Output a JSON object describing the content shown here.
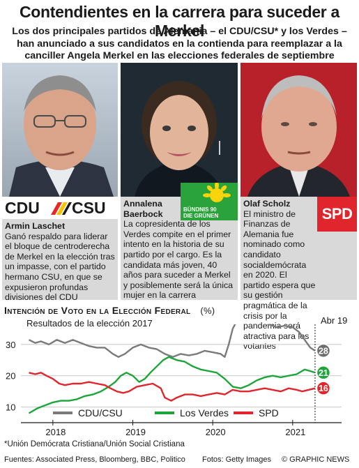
{
  "title": "Contendientes en la carrera para suceder a Merkel",
  "subtitle": "Los dos principales partidos de Alemania – el CDU/CSU* y los Verdes – han anunciado a sus candidatos en la contienda para reemplazar a la canciller Angela Merkel en las elecciones federales de septiembre",
  "candidates": [
    {
      "name": "Armin Laschet",
      "party_logo": "CDU / CSU",
      "description": "Ganó respaldo para liderar el bloque de centroderecha de Merkel en la elección tras un impasse, con el partido hermano CSU, en que se expusieron profundas divisiones del CDU"
    },
    {
      "name": "Annalena Baerbock",
      "party_logo": "BÜNDNIS 90 DIE GRÜNEN",
      "description": "La copresidenta de los Verdes compite en el primer intento en la historia de su partido por el cargo. Es la candidata más joven, 40 años para suceder a Merkel y posiblemente será la única mujer en la carrera"
    },
    {
      "name": "Olaf Scholz",
      "party_logo": "SPD",
      "description": "El ministro de Finanzas de Alemania fue nominado como candidato socialdemócrata en 2020. El partido espera que su gestión pragmática de la crisis por la pandemia será atractiva para los votantes"
    }
  ],
  "chart_heading": "Intención de Voto en la Elección Federal",
  "chart_unit": "(%)",
  "chart_subtitle": "Resultados de la elección 2017",
  "chart_note": "Abr 19",
  "footnote": "*Unión Demócrata Cristiana/Unión Social Cristiana",
  "sources": "Fuentes: Associated Press, Bloomberg, BBC, Politico",
  "photos": "Fotos: Getty Images",
  "brand": "© GRAPHIC NEWS",
  "colors": {
    "cdu": "#7a7a7a",
    "greens": "#1ea53a",
    "spd": "#e0262c",
    "cdu_badge": "#6d6d6d",
    "desc_bg": "#d9d9d9"
  },
  "chart_data": {
    "type": "line",
    "ylim": [
      5,
      36
    ],
    "yticks": [
      10,
      20,
      30
    ],
    "xlim": [
      2017.6,
      2021.42
    ],
    "xticks": [
      {
        "label": "2018",
        "value": 2018
      },
      {
        "label": "2019",
        "value": 2019
      },
      {
        "label": "2020",
        "value": 2020
      },
      {
        "label": "2021",
        "value": 2021
      }
    ],
    "series": [
      {
        "name": "CDU/CSU",
        "key": "cdu",
        "end_label": "28",
        "points": [
          [
            2017.7,
            31.5
          ],
          [
            2017.78,
            30.5
          ],
          [
            2017.85,
            31
          ],
          [
            2017.95,
            30
          ],
          [
            2018.05,
            31.5
          ],
          [
            2018.15,
            30.5
          ],
          [
            2018.25,
            31.5
          ],
          [
            2018.35,
            30.5
          ],
          [
            2018.45,
            29.5
          ],
          [
            2018.55,
            29
          ],
          [
            2018.65,
            29
          ],
          [
            2018.75,
            27
          ],
          [
            2018.82,
            26
          ],
          [
            2018.9,
            27
          ],
          [
            2019.0,
            29
          ],
          [
            2019.1,
            30
          ],
          [
            2019.2,
            29
          ],
          [
            2019.3,
            28.5
          ],
          [
            2019.4,
            27
          ],
          [
            2019.5,
            26
          ],
          [
            2019.6,
            27
          ],
          [
            2019.7,
            26.5
          ],
          [
            2019.8,
            27
          ],
          [
            2019.9,
            28
          ],
          [
            2020.0,
            27.5
          ],
          [
            2020.1,
            27
          ],
          [
            2020.15,
            26
          ],
          [
            2020.2,
            30
          ],
          [
            2020.25,
            35
          ],
          [
            2020.3,
            37.5
          ],
          [
            2020.4,
            38
          ],
          [
            2020.5,
            37.5
          ],
          [
            2020.6,
            37
          ],
          [
            2020.7,
            36.5
          ],
          [
            2020.8,
            35.5
          ],
          [
            2020.9,
            36
          ],
          [
            2021.0,
            35.5
          ],
          [
            2021.08,
            34
          ],
          [
            2021.15,
            31.5
          ],
          [
            2021.22,
            29
          ],
          [
            2021.28,
            28
          ]
        ]
      },
      {
        "name": "Los Verdes",
        "key": "greens",
        "end_label": "21",
        "points": [
          [
            2017.7,
            8
          ],
          [
            2017.8,
            9.5
          ],
          [
            2017.9,
            10.5
          ],
          [
            2018.0,
            11.5
          ],
          [
            2018.1,
            12
          ],
          [
            2018.2,
            12
          ],
          [
            2018.3,
            12.5
          ],
          [
            2018.4,
            13.5
          ],
          [
            2018.5,
            14
          ],
          [
            2018.6,
            15
          ],
          [
            2018.7,
            16.5
          ],
          [
            2018.78,
            18
          ],
          [
            2018.85,
            20
          ],
          [
            2018.92,
            21
          ],
          [
            2019.0,
            20
          ],
          [
            2019.08,
            18
          ],
          [
            2019.15,
            19
          ],
          [
            2019.22,
            21
          ],
          [
            2019.3,
            23
          ],
          [
            2019.38,
            25
          ],
          [
            2019.45,
            26
          ],
          [
            2019.55,
            25
          ],
          [
            2019.65,
            24.5
          ],
          [
            2019.75,
            23
          ],
          [
            2019.85,
            22
          ],
          [
            2019.95,
            21.5
          ],
          [
            2020.05,
            21
          ],
          [
            2020.15,
            19
          ],
          [
            2020.25,
            16.5
          ],
          [
            2020.35,
            16
          ],
          [
            2020.45,
            17
          ],
          [
            2020.55,
            18.5
          ],
          [
            2020.65,
            19.5
          ],
          [
            2020.75,
            20
          ],
          [
            2020.85,
            19.5
          ],
          [
            2020.95,
            20
          ],
          [
            2021.05,
            20.5
          ],
          [
            2021.15,
            22
          ],
          [
            2021.22,
            21.5
          ],
          [
            2021.28,
            21
          ]
        ]
      },
      {
        "name": "SPD",
        "key": "spd",
        "end_label": "16",
        "points": [
          [
            2017.7,
            21
          ],
          [
            2017.78,
            20.5
          ],
          [
            2017.85,
            21
          ],
          [
            2017.92,
            20
          ],
          [
            2018.0,
            19
          ],
          [
            2018.08,
            17.5
          ],
          [
            2018.15,
            17
          ],
          [
            2018.25,
            17.5
          ],
          [
            2018.35,
            17.5
          ],
          [
            2018.45,
            18
          ],
          [
            2018.55,
            17.5
          ],
          [
            2018.65,
            17
          ],
          [
            2018.72,
            16
          ],
          [
            2018.8,
            15
          ],
          [
            2018.88,
            14.5
          ],
          [
            2018.95,
            15
          ],
          [
            2019.05,
            16.5
          ],
          [
            2019.15,
            17
          ],
          [
            2019.25,
            17.5
          ],
          [
            2019.35,
            16
          ],
          [
            2019.4,
            13
          ],
          [
            2019.48,
            12
          ],
          [
            2019.55,
            13
          ],
          [
            2019.65,
            14
          ],
          [
            2019.75,
            14
          ],
          [
            2019.85,
            13.5
          ],
          [
            2019.95,
            14
          ],
          [
            2020.05,
            14.5
          ],
          [
            2020.15,
            14
          ],
          [
            2020.25,
            15.5
          ],
          [
            2020.35,
            15
          ],
          [
            2020.45,
            15
          ],
          [
            2020.55,
            15.5
          ],
          [
            2020.65,
            16
          ],
          [
            2020.75,
            15.5
          ],
          [
            2020.85,
            15
          ],
          [
            2020.95,
            16
          ],
          [
            2021.05,
            15.5
          ],
          [
            2021.12,
            15
          ],
          [
            2021.2,
            15.5
          ],
          [
            2021.28,
            16
          ]
        ]
      }
    ]
  }
}
